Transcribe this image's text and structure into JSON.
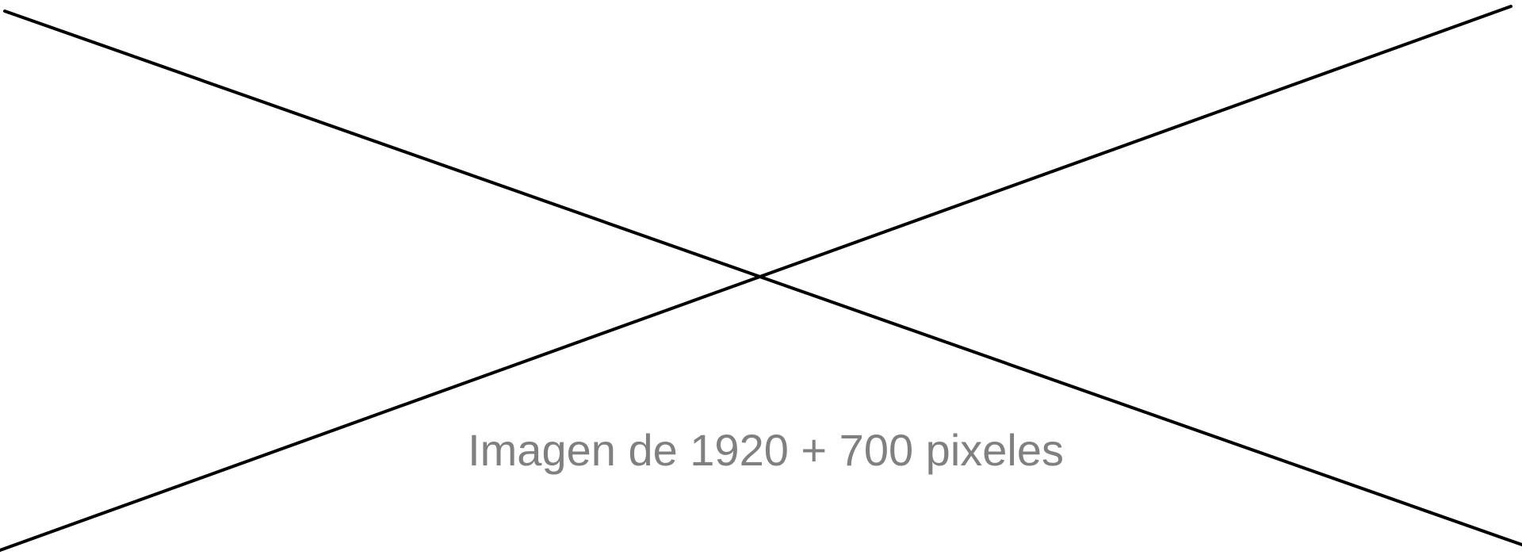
{
  "placeholder": {
    "caption": "Imagen de 1920 + 700 pixeles",
    "line_color": "#000000",
    "caption_color": "#808080",
    "background_color": "#ffffff"
  }
}
